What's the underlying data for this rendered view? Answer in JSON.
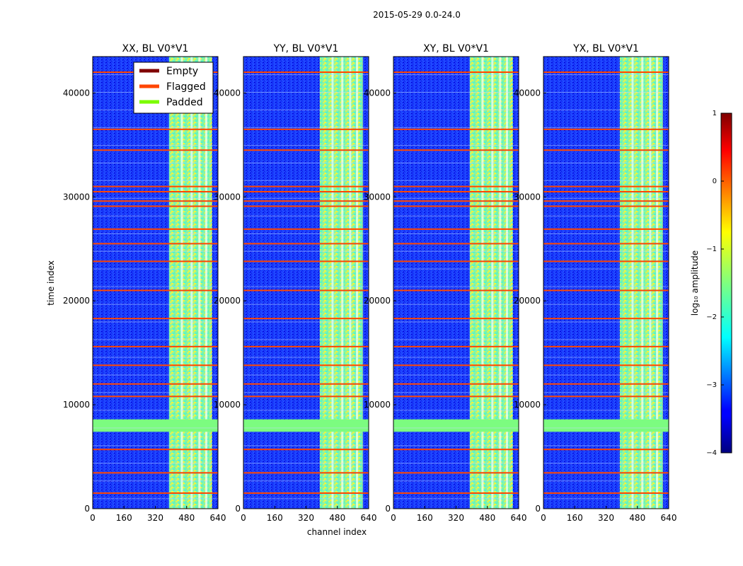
{
  "figure": {
    "suptitle": "2015-05-29 0.0-24.0",
    "xlabel": "channel index",
    "ylabel": "time index"
  },
  "chart_data": {
    "type": "heatmap",
    "colormap": "jet",
    "value_label": "log10 amplitude",
    "x_ticks": [
      0,
      160,
      320,
      480,
      640
    ],
    "y_ticks": [
      0,
      10000,
      20000,
      30000,
      40000
    ],
    "xlim": [
      0,
      640
    ],
    "ylim": [
      0,
      43500
    ],
    "colorbar": {
      "min": -4,
      "max": 1,
      "ticks": [
        1,
        0,
        -1,
        -2,
        -3,
        -4
      ],
      "tick_labels": [
        "1",
        "0",
        "−1",
        "−2",
        "−3",
        "−4"
      ],
      "label": "log₁₀ amplitude"
    },
    "panels": [
      {
        "title": "XX, BL V0*V1"
      },
      {
        "title": "YY, BL V0*V1"
      },
      {
        "title": "XY, BL V0*V1"
      },
      {
        "title": "YX, BL V0*V1"
      }
    ],
    "legend": {
      "placement": "upper-right of first panel",
      "entries": [
        {
          "label": "Empty",
          "color": "#800000"
        },
        {
          "label": "Flagged",
          "color": "#ff4500"
        },
        {
          "label": "Padded",
          "color": "#7cfc00"
        }
      ]
    },
    "flagged_time_rows": [
      1500,
      3450,
      5700,
      10800,
      12000,
      13800,
      15600,
      18300,
      21000,
      23800,
      25500,
      26900,
      29100,
      29600,
      30500,
      31000,
      34500,
      36500,
      42000
    ],
    "padded_time_band": [
      7400,
      8600
    ],
    "signal_channel_range": [
      390,
      610
    ]
  }
}
